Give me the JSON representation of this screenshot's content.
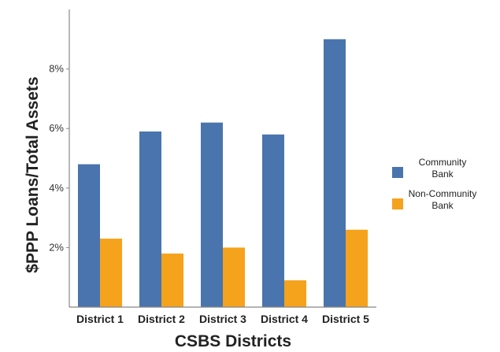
{
  "chart_data": {
    "type": "bar",
    "categories": [
      "District 1",
      "District 2",
      "District 3",
      "District 4",
      "District 5"
    ],
    "series": [
      {
        "name": "Community Bank",
        "values": [
          4.8,
          5.9,
          6.2,
          5.8,
          9.0
        ],
        "color": "#4a74ad"
      },
      {
        "name": "Non-Community Bank",
        "values": [
          2.3,
          1.8,
          2.0,
          0.9,
          2.6
        ],
        "color": "#f5a21c"
      }
    ],
    "xlabel": "CSBS Districts",
    "ylabel": "$PPP Loans/Total Assets",
    "yticks": [
      2,
      4,
      6,
      8
    ],
    "ytick_labels": [
      "2%",
      "4%",
      "6%",
      "8%"
    ],
    "ylim": [
      0,
      10
    ],
    "legend_labels": [
      [
        "Community",
        "Bank"
      ],
      [
        "Non-Community",
        "Bank"
      ]
    ],
    "legend_position": "right",
    "grid": false
  }
}
